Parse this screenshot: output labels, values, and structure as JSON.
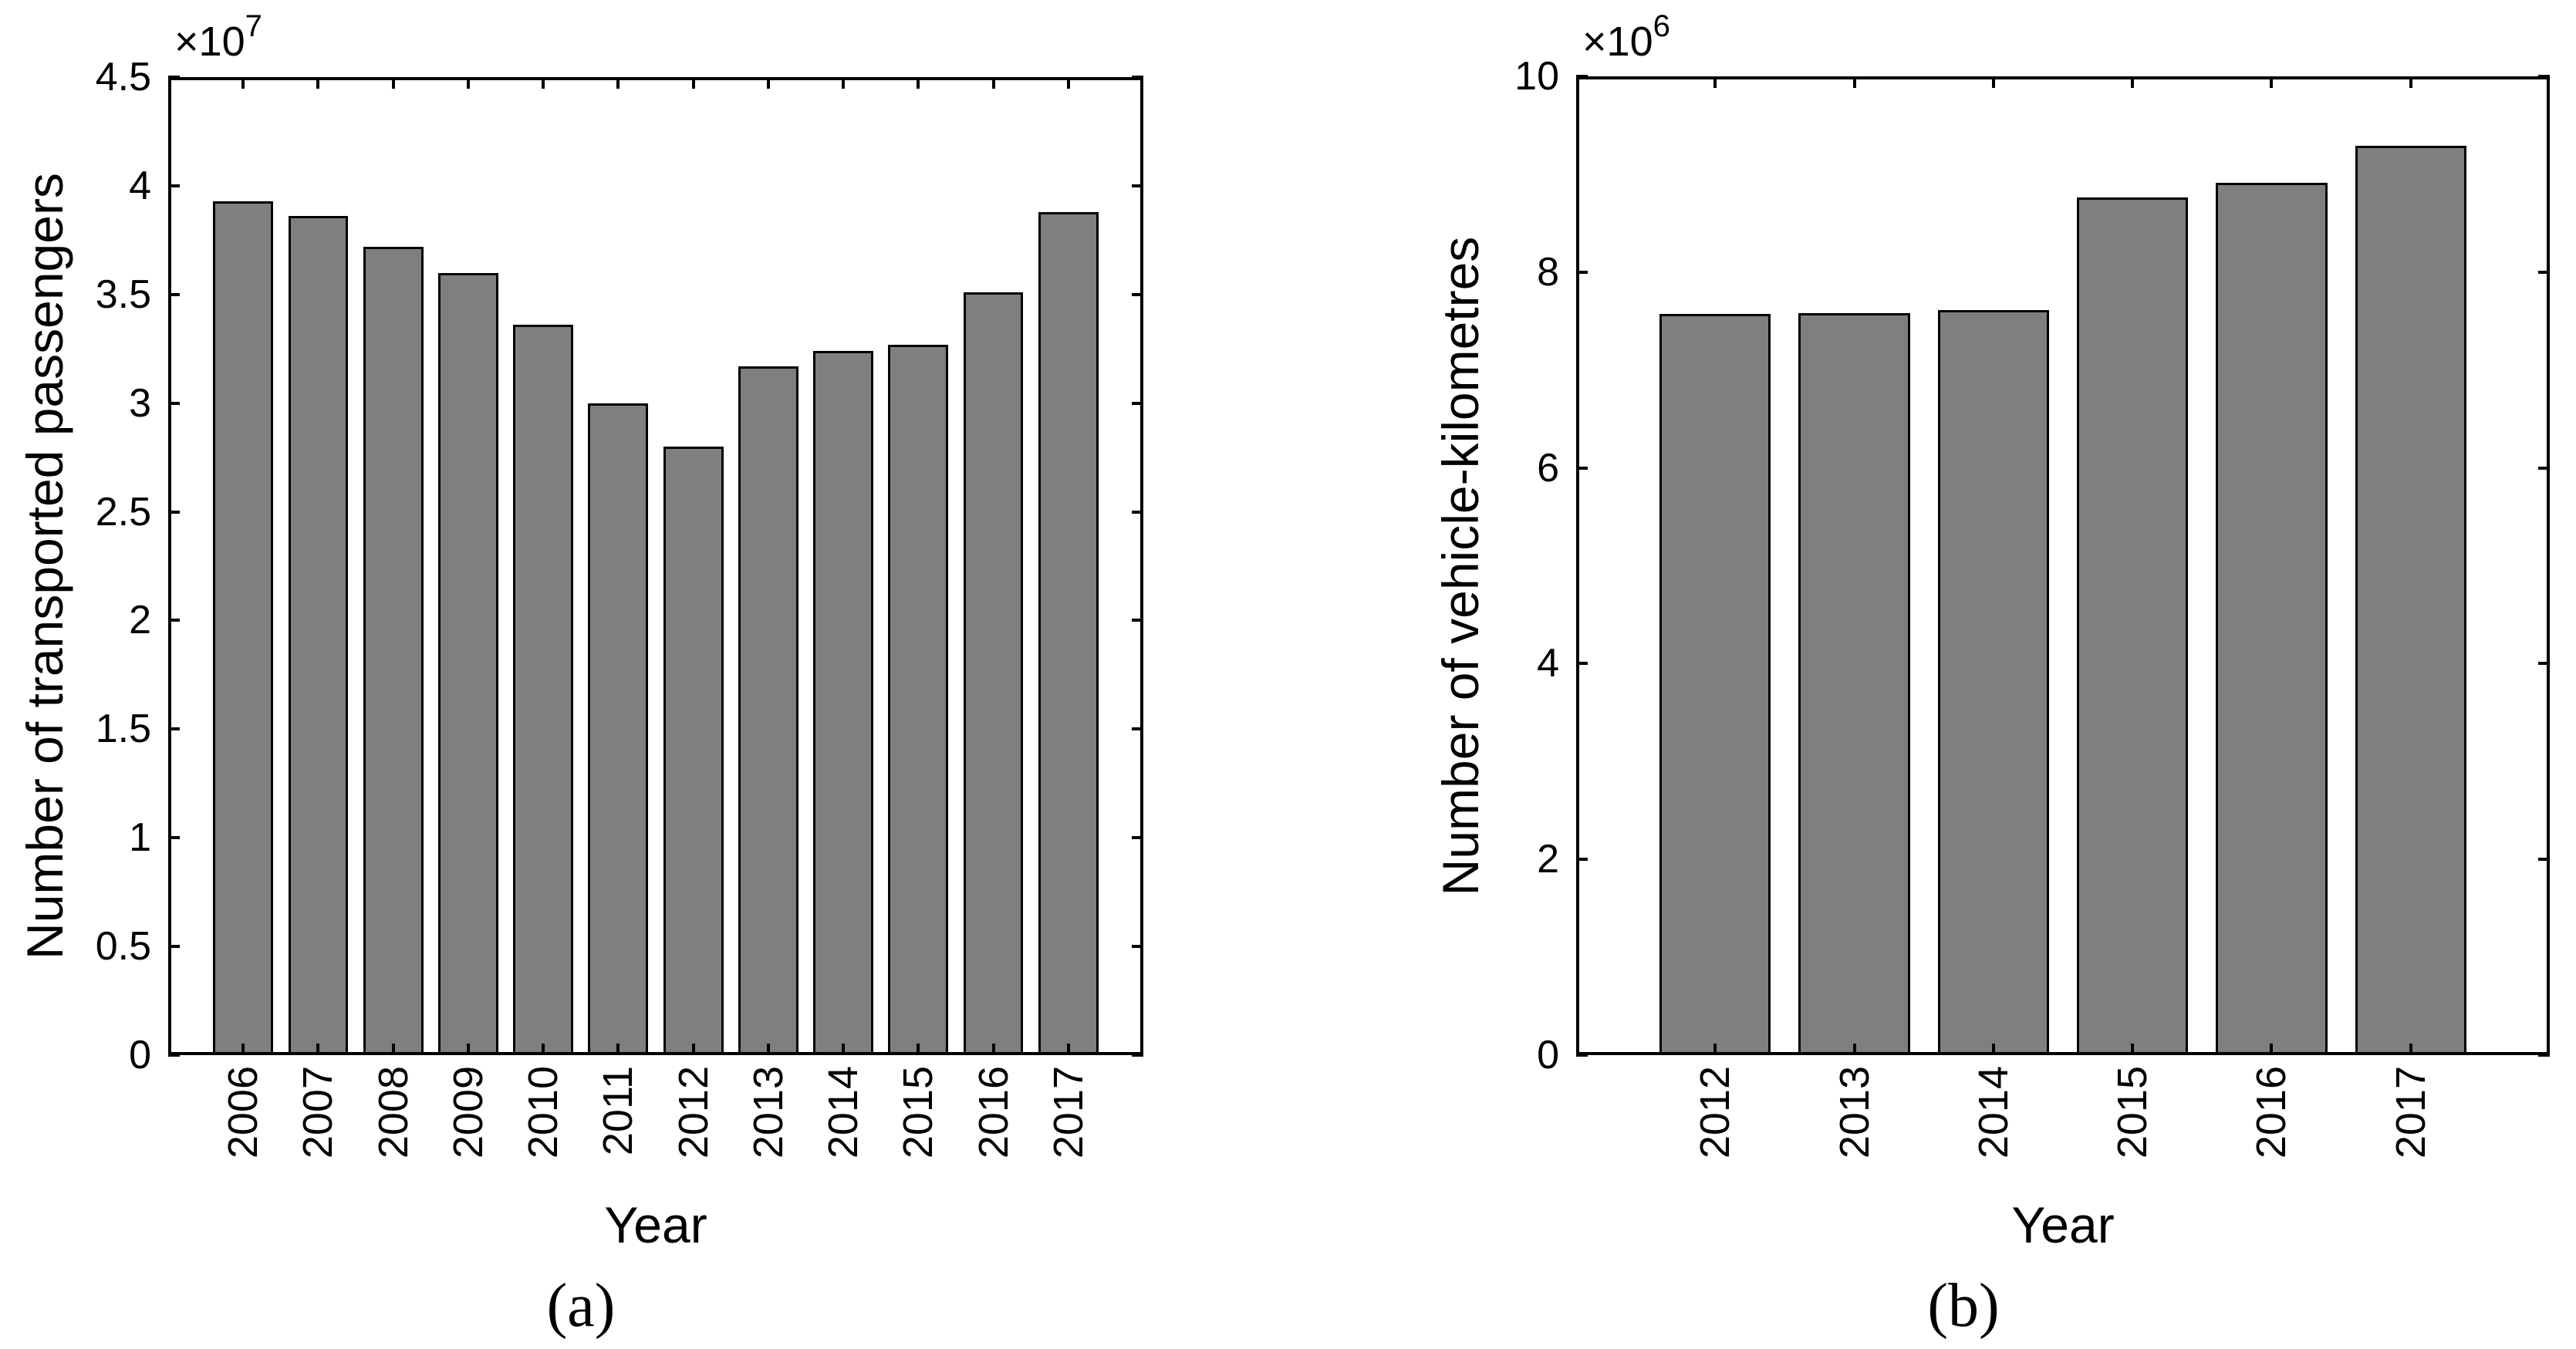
{
  "figure": {
    "background": "#ffffff",
    "bar_fill": "#7f7f7f",
    "bar_edge": "#000000",
    "axis_color": "#000000",
    "text_color": "#000000"
  },
  "chart_data": [
    {
      "id": "a",
      "type": "bar",
      "caption": "(a)",
      "xlabel": "Year",
      "ylabel": "Number of transported passengers",
      "exponent_base": "×10",
      "exponent_power": "7",
      "value_unit_multiplier": 10000000,
      "categories": [
        "2006",
        "2007",
        "2008",
        "2009",
        "2010",
        "2011",
        "2012",
        "2013",
        "2014",
        "2015",
        "2016",
        "2017"
      ],
      "values": [
        3.93,
        3.86,
        3.72,
        3.6,
        3.36,
        3.0,
        2.8,
        3.17,
        3.24,
        3.27,
        3.51,
        3.88
      ],
      "ylim": [
        0,
        4.5
      ],
      "ytick_labels": [
        "0",
        "0.5",
        "1",
        "1.5",
        "2",
        "2.5",
        "3",
        "3.5",
        "4",
        "4.5"
      ],
      "grid": false,
      "legend_position": "none",
      "bar_width_fraction": 0.8
    },
    {
      "id": "b",
      "type": "bar",
      "caption": "(b)",
      "xlabel": "Year",
      "ylabel": "Number of vehicle-kilometres",
      "exponent_base": "×10",
      "exponent_power": "6",
      "value_unit_multiplier": 1000000,
      "categories": [
        "2012",
        "2013",
        "2014",
        "2015",
        "2016",
        "2017"
      ],
      "values": [
        7.57,
        7.58,
        7.61,
        8.76,
        8.91,
        9.29
      ],
      "ylim": [
        0,
        10
      ],
      "ytick_labels": [
        "0",
        "2",
        "4",
        "6",
        "8",
        "10"
      ],
      "grid": false,
      "legend_position": "none",
      "bar_width_fraction": 0.8
    }
  ]
}
